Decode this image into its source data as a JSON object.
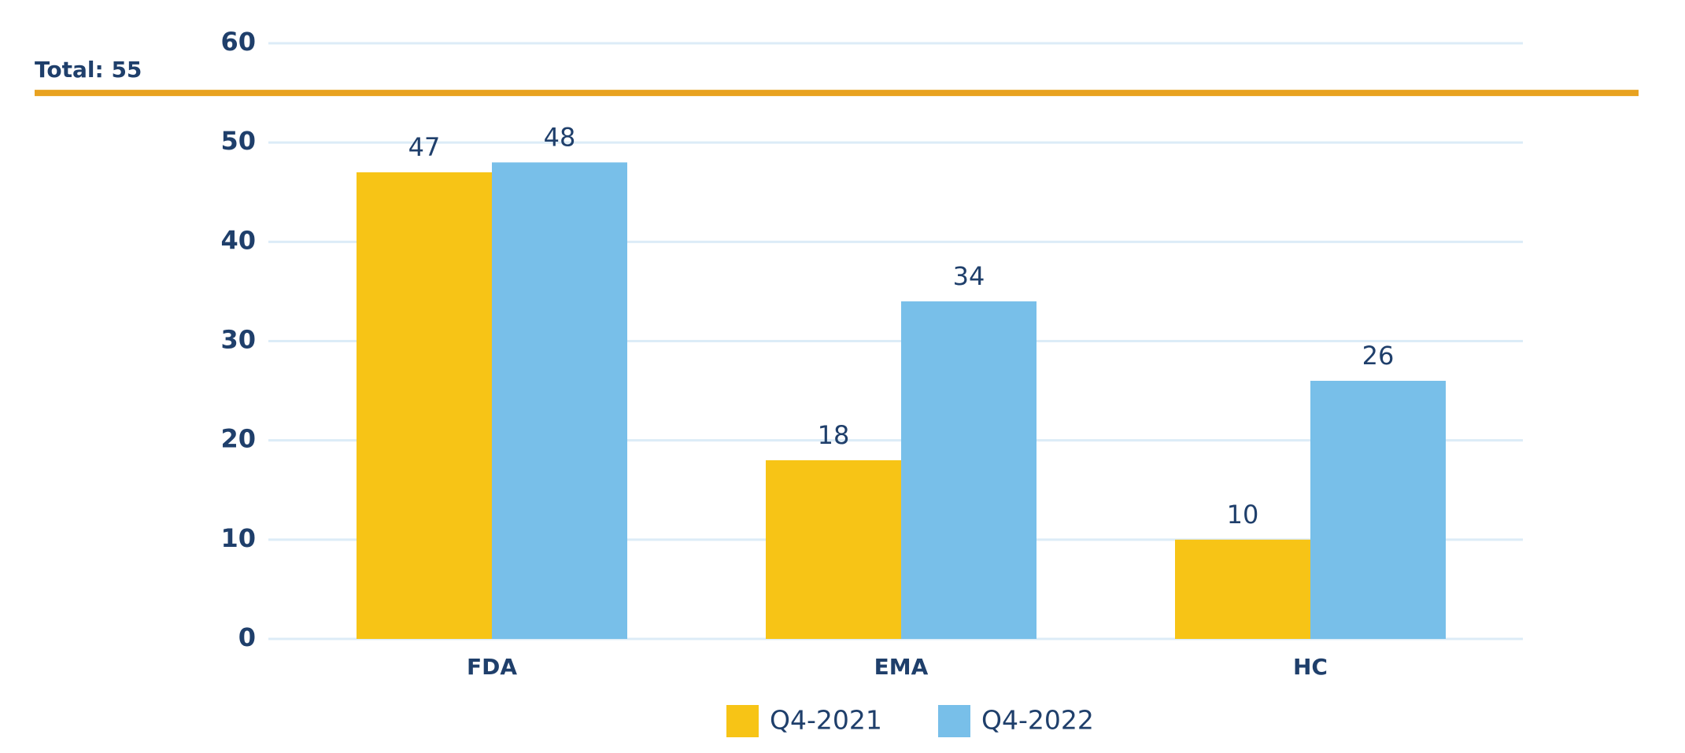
{
  "chart_data": {
    "type": "bar",
    "categories": [
      "FDA",
      "EMA",
      "HC"
    ],
    "series": [
      {
        "name": "Q4-2021",
        "color": "#f7c416",
        "values": [
          47,
          18,
          10
        ]
      },
      {
        "name": "Q4-2022",
        "color": "#78bfe9",
        "values": [
          48,
          34,
          26
        ]
      }
    ],
    "ylim": [
      0,
      60
    ],
    "yticks": [
      0,
      10,
      20,
      30,
      40,
      50,
      60
    ],
    "grid": true,
    "reference_line": {
      "value": 55,
      "label": "Total: 55",
      "color": "#e8a220"
    },
    "legend": "bottom"
  }
}
